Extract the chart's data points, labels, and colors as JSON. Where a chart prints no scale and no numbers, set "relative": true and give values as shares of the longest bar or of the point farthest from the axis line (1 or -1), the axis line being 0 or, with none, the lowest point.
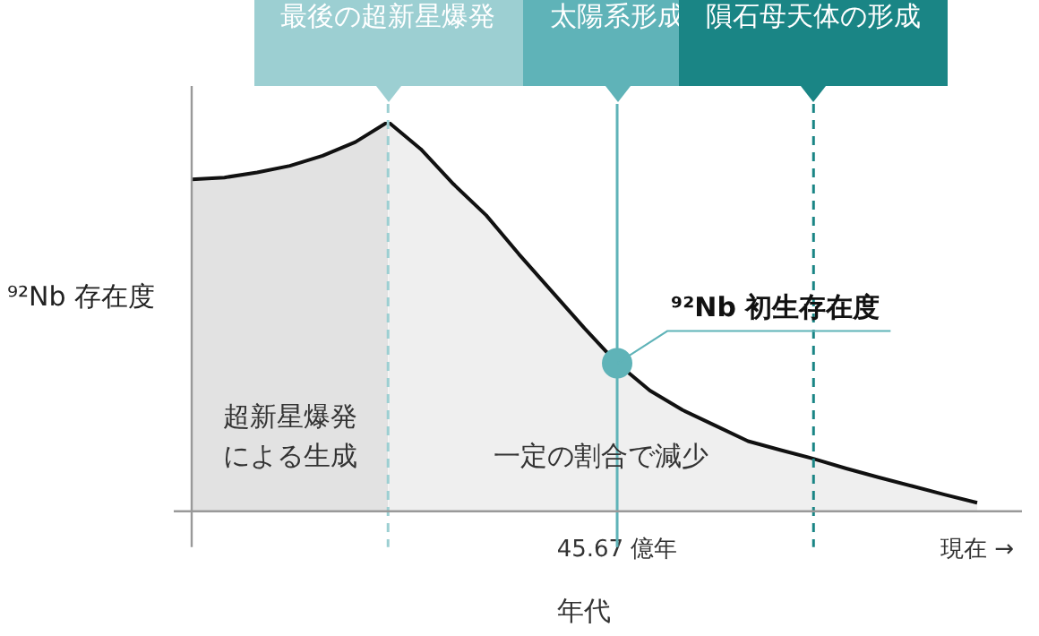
{
  "chart_data": {
    "type": "area",
    "relative": true,
    "xlabel": "年代",
    "ylabel": "⁹²Nb 存在度",
    "categories": [
      null,
      null,
      null,
      null,
      null,
      null,
      null,
      null,
      null,
      null,
      null,
      null,
      null,
      "45.67 億年",
      null,
      null,
      null,
      null,
      null,
      null,
      null,
      null,
      null,
      null,
      "現在 →"
    ],
    "series": [
      {
        "color": "#e2e2e2",
        "values": [
          0.852,
          0.857,
          0.87,
          0.887,
          0.913,
          0.948,
          1,
          null,
          null,
          null,
          null,
          null,
          null,
          null,
          null,
          null,
          null,
          null,
          null,
          null,
          null,
          null,
          null,
          null,
          null
        ]
      },
      {
        "color": "#efefef",
        "values": [
          null,
          null,
          null,
          null,
          null,
          null,
          1,
          0.93,
          0.84,
          0.76,
          0.66,
          0.565,
          0.47,
          0.38,
          0.31,
          0.26,
          0.22,
          0.18,
          0.157,
          0.135,
          0.11,
          0.087,
          0.065,
          0.043,
          0.022
        ]
      },
      {
        "type": "scatter",
        "color": "#5fb3b8",
        "marker": "circle",
        "values": [
          null,
          null,
          null,
          null,
          null,
          null,
          null,
          null,
          null,
          null,
          null,
          null,
          null,
          0.38,
          null,
          null,
          null,
          null,
          null,
          null,
          null,
          null,
          null,
          null,
          null
        ]
      }
    ],
    "annotations": [
      "最後の超新星爆発",
      "太陽系形成",
      "隕石母天体の形成",
      "超新星爆発",
      "による生成",
      "一定の割合で減少",
      {
        "text": "⁹²Nb 初生存在度",
        "x": "45.67 億年",
        "y": 0.38
      }
    ],
    "grid": false,
    "legend": false
  }
}
